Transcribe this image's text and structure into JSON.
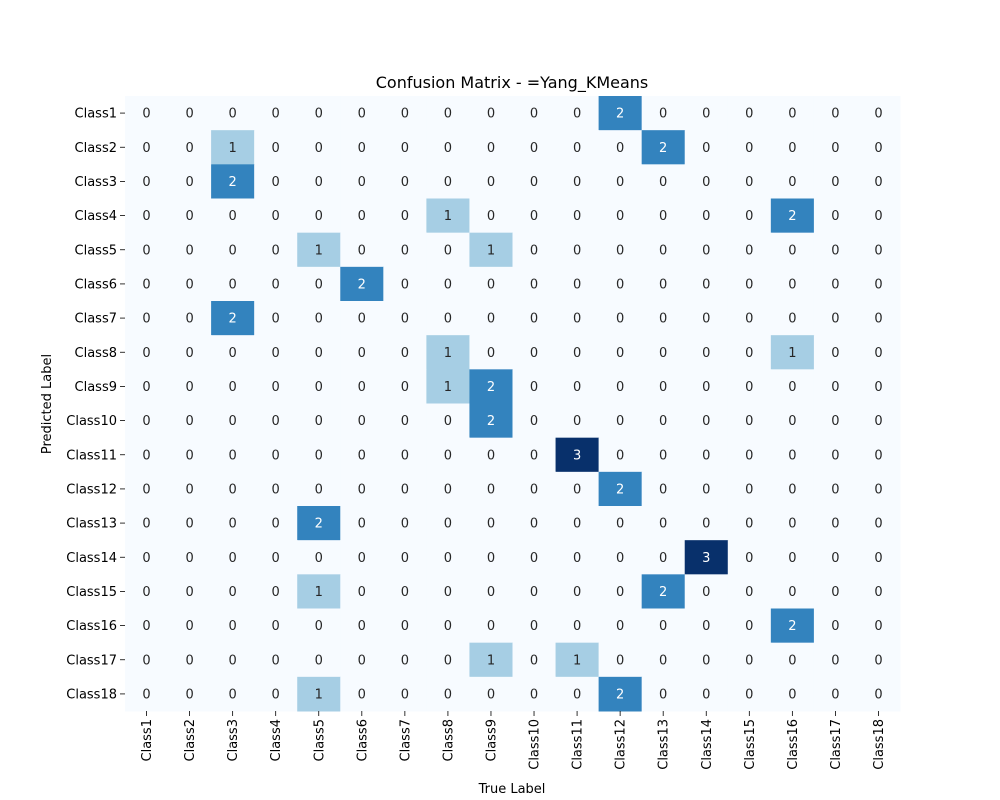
{
  "chart_data": {
    "type": "heatmap",
    "title": "Confusion Matrix - =Yang_KMeans",
    "xlabel": "True Label",
    "ylabel": "Predicted Label",
    "x_categories": [
      "Class1",
      "Class2",
      "Class3",
      "Class4",
      "Class5",
      "Class6",
      "Class7",
      "Class8",
      "Class9",
      "Class10",
      "Class11",
      "Class12",
      "Class13",
      "Class14",
      "Class15",
      "Class16",
      "Class17",
      "Class18"
    ],
    "y_categories": [
      "Class1",
      "Class2",
      "Class3",
      "Class4",
      "Class5",
      "Class6",
      "Class7",
      "Class8",
      "Class9",
      "Class10",
      "Class11",
      "Class12",
      "Class13",
      "Class14",
      "Class15",
      "Class16",
      "Class17",
      "Class18"
    ],
    "values": [
      [
        0,
        0,
        0,
        0,
        0,
        0,
        0,
        0,
        0,
        0,
        0,
        2,
        0,
        0,
        0,
        0,
        0,
        0
      ],
      [
        0,
        0,
        1,
        0,
        0,
        0,
        0,
        0,
        0,
        0,
        0,
        0,
        2,
        0,
        0,
        0,
        0,
        0
      ],
      [
        0,
        0,
        2,
        0,
        0,
        0,
        0,
        0,
        0,
        0,
        0,
        0,
        0,
        0,
        0,
        0,
        0,
        0
      ],
      [
        0,
        0,
        0,
        0,
        0,
        0,
        0,
        1,
        0,
        0,
        0,
        0,
        0,
        0,
        0,
        2,
        0,
        0
      ],
      [
        0,
        0,
        0,
        0,
        1,
        0,
        0,
        0,
        1,
        0,
        0,
        0,
        0,
        0,
        0,
        0,
        0,
        0
      ],
      [
        0,
        0,
        0,
        0,
        0,
        2,
        0,
        0,
        0,
        0,
        0,
        0,
        0,
        0,
        0,
        0,
        0,
        0
      ],
      [
        0,
        0,
        2,
        0,
        0,
        0,
        0,
        0,
        0,
        0,
        0,
        0,
        0,
        0,
        0,
        0,
        0,
        0
      ],
      [
        0,
        0,
        0,
        0,
        0,
        0,
        0,
        1,
        0,
        0,
        0,
        0,
        0,
        0,
        0,
        1,
        0,
        0
      ],
      [
        0,
        0,
        0,
        0,
        0,
        0,
        0,
        1,
        2,
        0,
        0,
        0,
        0,
        0,
        0,
        0,
        0,
        0
      ],
      [
        0,
        0,
        0,
        0,
        0,
        0,
        0,
        0,
        2,
        0,
        0,
        0,
        0,
        0,
        0,
        0,
        0,
        0
      ],
      [
        0,
        0,
        0,
        0,
        0,
        0,
        0,
        0,
        0,
        0,
        3,
        0,
        0,
        0,
        0,
        0,
        0,
        0
      ],
      [
        0,
        0,
        0,
        0,
        0,
        0,
        0,
        0,
        0,
        0,
        0,
        2,
        0,
        0,
        0,
        0,
        0,
        0
      ],
      [
        0,
        0,
        0,
        0,
        2,
        0,
        0,
        0,
        0,
        0,
        0,
        0,
        0,
        0,
        0,
        0,
        0,
        0
      ],
      [
        0,
        0,
        0,
        0,
        0,
        0,
        0,
        0,
        0,
        0,
        0,
        0,
        0,
        3,
        0,
        0,
        0,
        0
      ],
      [
        0,
        0,
        0,
        0,
        1,
        0,
        0,
        0,
        0,
        0,
        0,
        0,
        2,
        0,
        0,
        0,
        0,
        0
      ],
      [
        0,
        0,
        0,
        0,
        0,
        0,
        0,
        0,
        0,
        0,
        0,
        0,
        0,
        0,
        0,
        2,
        0,
        0
      ],
      [
        0,
        0,
        0,
        0,
        0,
        0,
        0,
        0,
        1,
        0,
        1,
        0,
        0,
        0,
        0,
        0,
        0,
        0
      ],
      [
        0,
        0,
        0,
        0,
        1,
        0,
        0,
        0,
        0,
        0,
        0,
        2,
        0,
        0,
        0,
        0,
        0,
        0
      ]
    ],
    "value_range": [
      0,
      3
    ],
    "colormap": "Blues",
    "colors": {
      "0": "#f7fbff",
      "1": "#a6cee4",
      "2": "#3383be",
      "3": "#08306b"
    },
    "annotations": true,
    "grid": false,
    "legend": "none"
  }
}
